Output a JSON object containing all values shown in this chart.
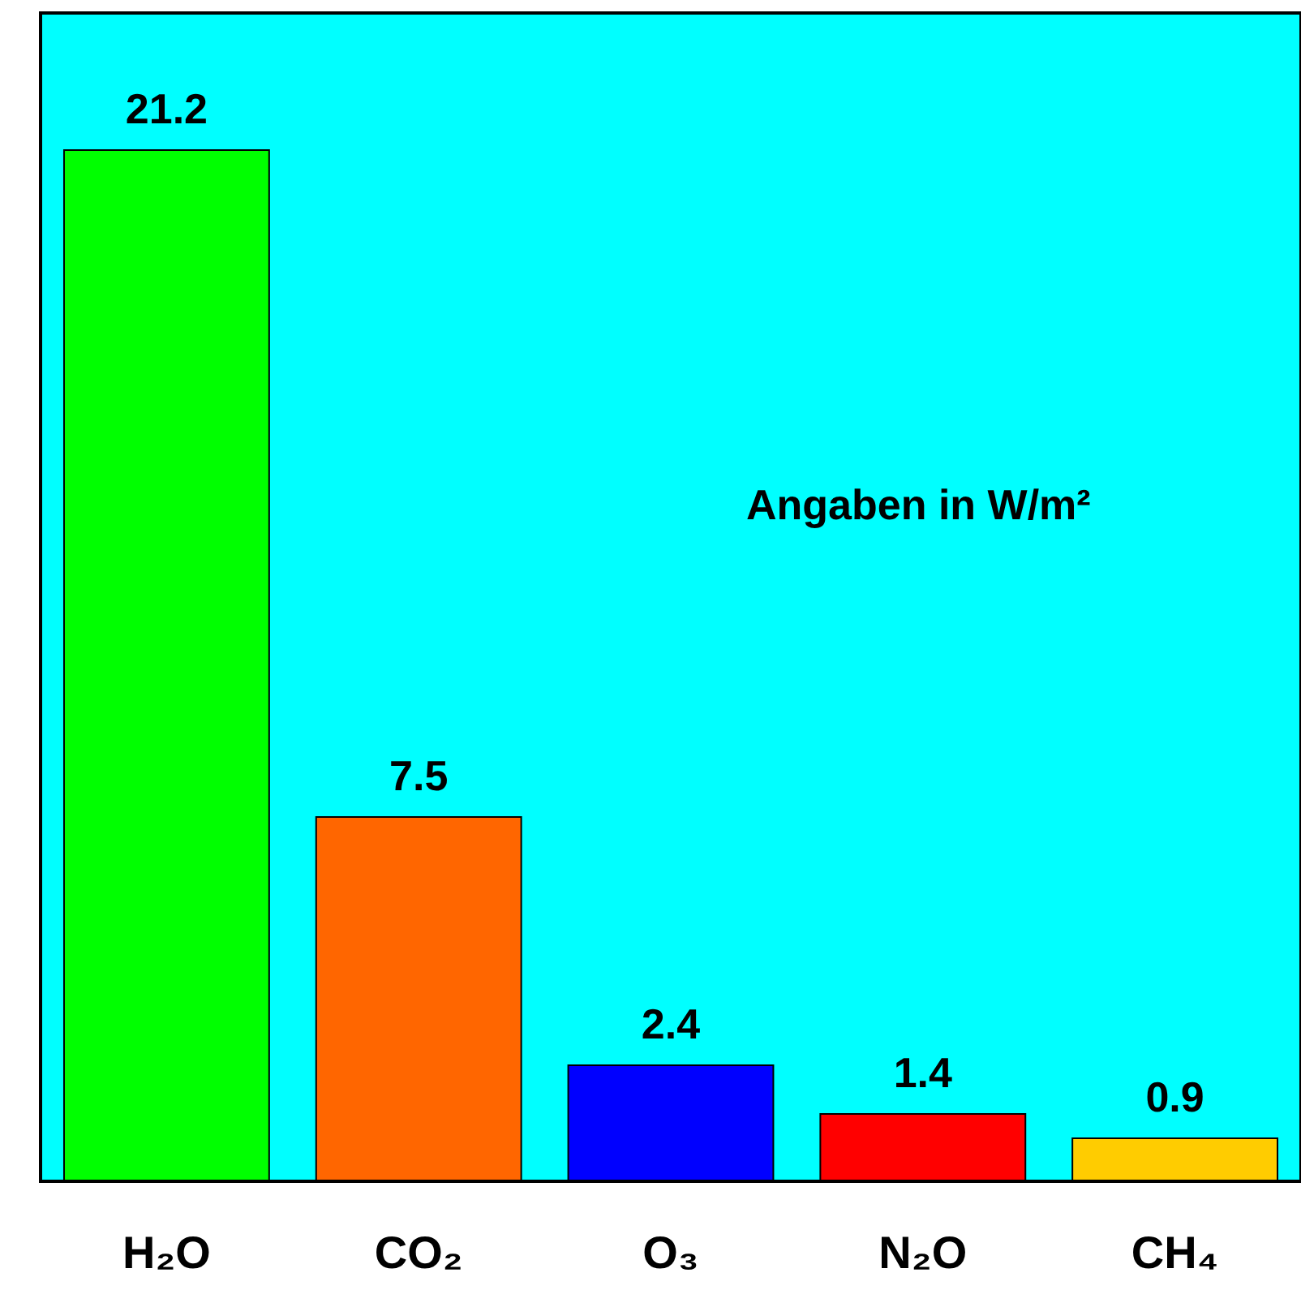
{
  "chart_data": {
    "type": "bar",
    "categories": [
      "H₂O",
      "CO₂",
      "O₃",
      "N₂O",
      "CH₄"
    ],
    "values": [
      21.2,
      7.5,
      2.4,
      1.4,
      0.9
    ],
    "colors": [
      "#00ff00",
      "#ff6600",
      "#0000ff",
      "#ff0000",
      "#ffcc00"
    ],
    "ylim": [
      0,
      24
    ],
    "tick_labels": "x",
    "data_labels": true,
    "annotations": [
      "Angaben in W/m²"
    ]
  }
}
